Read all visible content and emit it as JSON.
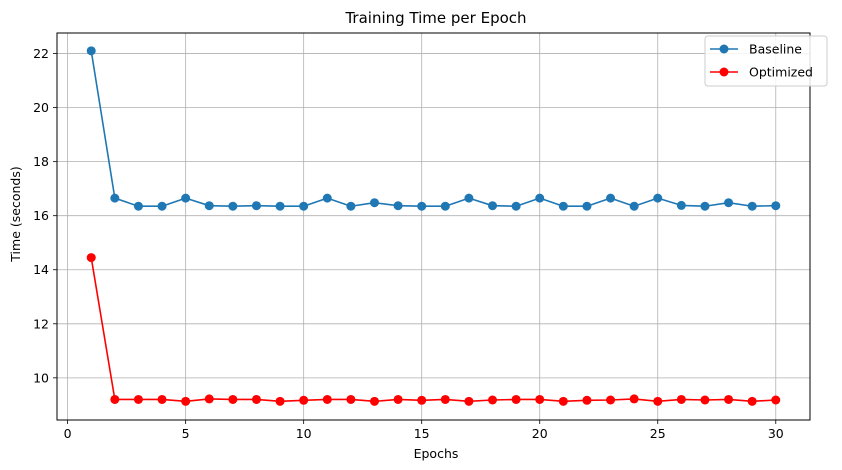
{
  "chart_data": {
    "type": "line",
    "title": "Training Time per Epoch",
    "xlabel": "Epochs",
    "ylabel": "Time (seconds)",
    "xlim": [
      -0.45,
      31.45
    ],
    "ylim": [
      8.44,
      22.76
    ],
    "xticks": [
      0,
      5,
      10,
      15,
      20,
      25,
      30
    ],
    "yticks": [
      10,
      12,
      14,
      16,
      18,
      20,
      22
    ],
    "grid": true,
    "legend_position": "top-right",
    "x": [
      1,
      2,
      3,
      4,
      5,
      6,
      7,
      8,
      9,
      10,
      11,
      12,
      13,
      14,
      15,
      16,
      17,
      18,
      19,
      20,
      21,
      22,
      23,
      24,
      25,
      26,
      27,
      28,
      29,
      30
    ],
    "series": [
      {
        "name": "Baseline",
        "color": "#1f77b4",
        "marker": "circle",
        "values": [
          22.1,
          16.65,
          16.35,
          16.35,
          16.65,
          16.37,
          16.35,
          16.37,
          16.35,
          16.35,
          16.65,
          16.35,
          16.48,
          16.37,
          16.35,
          16.35,
          16.65,
          16.37,
          16.35,
          16.65,
          16.35,
          16.35,
          16.65,
          16.35,
          16.65,
          16.38,
          16.35,
          16.48,
          16.35,
          16.37
        ]
      },
      {
        "name": "Optimized",
        "color": "#ff0000",
        "marker": "circle",
        "values": [
          14.45,
          9.2,
          9.2,
          9.2,
          9.13,
          9.22,
          9.2,
          9.2,
          9.13,
          9.17,
          9.2,
          9.2,
          9.13,
          9.2,
          9.17,
          9.2,
          9.13,
          9.18,
          9.2,
          9.2,
          9.13,
          9.17,
          9.18,
          9.22,
          9.13,
          9.2,
          9.18,
          9.2,
          9.13,
          9.18
        ]
      }
    ]
  }
}
